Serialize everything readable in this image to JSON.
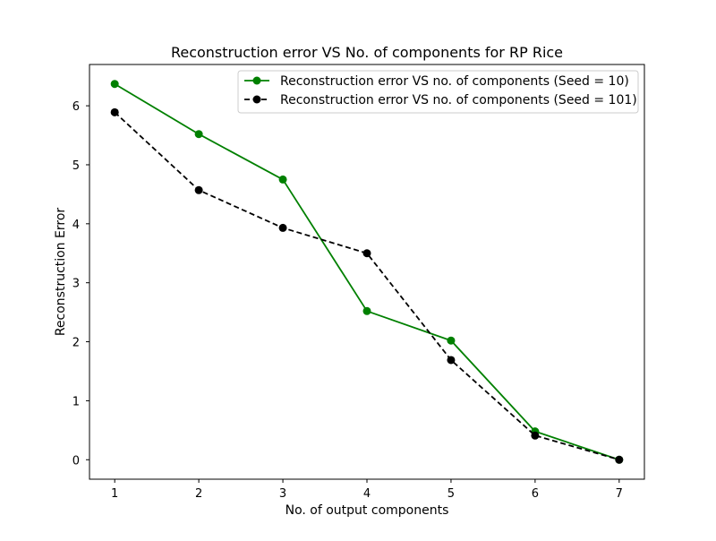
{
  "chart_data": {
    "type": "line",
    "title": "Reconstruction error VS No. of components for RP Rice",
    "xlabel": "No. of output components",
    "ylabel": "Reconstruction Error",
    "x": [
      1,
      2,
      3,
      4,
      5,
      6,
      7
    ],
    "xlim": [
      0.7,
      7.3
    ],
    "ylim": [
      -0.33,
      6.7
    ],
    "xticks": [
      1,
      2,
      3,
      4,
      5,
      6,
      7
    ],
    "yticks": [
      0,
      1,
      2,
      3,
      4,
      5,
      6
    ],
    "grid": false,
    "legend_position": "top-right",
    "series": [
      {
        "name": "Reconstruction error VS no. of components (Seed = 10)",
        "values": [
          6.37,
          5.52,
          4.75,
          2.52,
          2.02,
          0.48,
          0.0
        ],
        "color": "#008000",
        "line_style": "solid",
        "marker": "circle"
      },
      {
        "name": "Reconstruction error VS no. of components (Seed = 101)",
        "values": [
          5.89,
          4.57,
          3.93,
          3.5,
          1.69,
          0.41,
          0.0
        ],
        "color": "#000000",
        "line_style": "dashed",
        "marker": "circle"
      }
    ]
  }
}
